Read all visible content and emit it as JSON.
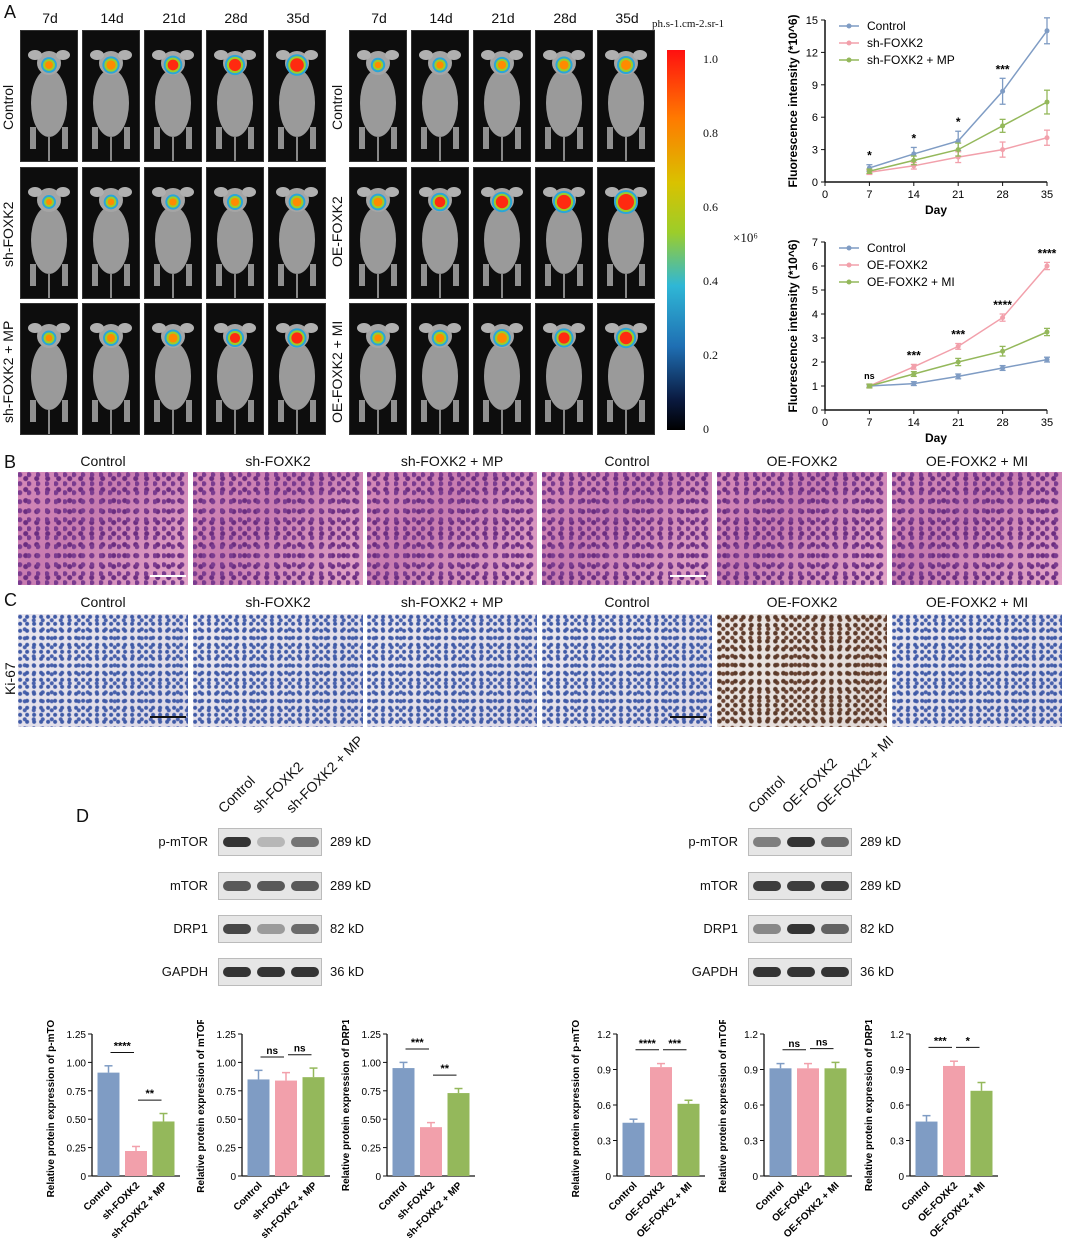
{
  "panel_labels": {
    "a": "A",
    "b": "B",
    "c": "C",
    "d": "D"
  },
  "days_cols": [
    "7d",
    "14d",
    "21d",
    "28d",
    "35d"
  ],
  "left_group_rows": [
    "Control",
    "sh-FOXK2",
    "sh-FOXK2 + MP"
  ],
  "right_group_rows": [
    "Control",
    "OE-FOXK2",
    "OE-FOXK2 + MI"
  ],
  "colorbar": {
    "unit": "ph.s-1.cm-2.sr-1",
    "scale_label": "×10⁶",
    "ticks": [
      "1.0",
      "0.8",
      "0.6",
      "0.4",
      "0.2",
      "0"
    ]
  },
  "histology": {
    "titles": [
      "Control",
      "sh-FOXK2",
      "sh-FOXK2 + MP",
      "Control",
      "OE-FOXK2",
      "OE-FOXK2 + MI"
    ],
    "ki67_label": "Ki-67"
  },
  "western": {
    "left_lanes": [
      "Control",
      "sh-FOXK2",
      "sh-FOXK2 + MP"
    ],
    "right_lanes": [
      "Control",
      "OE-FOXK2",
      "OE-FOXK2 + MI"
    ],
    "proteins": [
      "p-mTOR",
      "mTOR",
      "DRP1",
      "GAPDH"
    ],
    "kd": [
      "289 kD",
      "289 kD",
      "82 kD",
      "36 kD"
    ]
  },
  "colors": {
    "control": "#7f9cc4",
    "sh": "#f2a0ab",
    "mp": "#94b85b"
  },
  "chart_data": [
    {
      "type": "line",
      "xlabel": "Day",
      "ylabel": "Fluorescence intensity (*10^6)",
      "x": [
        7,
        14,
        21,
        28,
        35
      ],
      "xticks": [
        0,
        7,
        14,
        21,
        28,
        35
      ],
      "yticks": [
        0,
        3,
        6,
        9,
        12,
        15
      ],
      "xlim": [
        0,
        35
      ],
      "ylim": [
        0,
        15
      ],
      "series": [
        {
          "name": "Control",
          "values": [
            1.3,
            2.6,
            3.8,
            8.4,
            14.0
          ],
          "err": [
            0.3,
            0.6,
            0.9,
            1.2,
            1.2
          ],
          "color": "#7f9cc4"
        },
        {
          "name": "sh-FOXK2",
          "values": [
            0.9,
            1.5,
            2.3,
            3.0,
            4.1
          ],
          "err": [
            0.2,
            0.3,
            0.5,
            0.7,
            0.7
          ],
          "color": "#f2a0ab"
        },
        {
          "name": "sh-FOXK2 + MP",
          "values": [
            1.0,
            2.0,
            3.0,
            5.2,
            7.4
          ],
          "err": [
            0.2,
            0.4,
            0.6,
            0.6,
            1.1
          ],
          "color": "#94b85b"
        }
      ],
      "annotations": [
        "*",
        "*",
        "*",
        "***",
        "****"
      ]
    },
    {
      "type": "line",
      "xlabel": "Day",
      "ylabel": "Fluorescence intensity (*10^6)",
      "x": [
        7,
        14,
        21,
        28,
        35
      ],
      "xticks": [
        0,
        7,
        14,
        21,
        28,
        35
      ],
      "yticks": [
        0,
        1,
        2,
        3,
        4,
        5,
        6,
        7
      ],
      "xlim": [
        0,
        35
      ],
      "ylim": [
        0,
        7
      ],
      "series": [
        {
          "name": "Control",
          "values": [
            1.0,
            1.1,
            1.4,
            1.75,
            2.1
          ],
          "err": [
            0.05,
            0.08,
            0.1,
            0.1,
            0.1
          ],
          "color": "#7f9cc4"
        },
        {
          "name": "OE-FOXK2",
          "values": [
            1.0,
            1.8,
            2.65,
            3.85,
            6.0
          ],
          "err": [
            0.08,
            0.1,
            0.12,
            0.15,
            0.15
          ],
          "color": "#f2a0ab"
        },
        {
          "name": "OE-FOXK2 + MI",
          "values": [
            1.0,
            1.5,
            2.0,
            2.45,
            3.25
          ],
          "err": [
            0.08,
            0.1,
            0.15,
            0.2,
            0.15
          ],
          "color": "#94b85b"
        }
      ],
      "annotations": [
        "ns",
        "***",
        "***",
        "****",
        "****"
      ]
    },
    {
      "type": "bar",
      "ylabel": "Relative protein expression of p-mTOR",
      "categories": [
        "Control",
        "sh-FOXK2",
        "sh-FOXK2 + MP"
      ],
      "values": [
        0.91,
        0.22,
        0.48
      ],
      "err": [
        0.06,
        0.04,
        0.07
      ],
      "ylim": [
        0,
        1.25
      ],
      "yticks": [
        "0",
        "0.25",
        "0.50",
        "0.75",
        "1.00",
        "1.25"
      ],
      "sig": [
        {
          "from": 0,
          "to": 1,
          "label": "****"
        },
        {
          "from": 1,
          "to": 2,
          "label": "**"
        }
      ]
    },
    {
      "type": "bar",
      "ylabel": "Relative protein expression of mTOR",
      "categories": [
        "Control",
        "sh-FOXK2",
        "sh-FOXK2 + MP"
      ],
      "values": [
        0.85,
        0.84,
        0.87
      ],
      "err": [
        0.08,
        0.07,
        0.08
      ],
      "ylim": [
        0,
        1.25
      ],
      "yticks": [
        "0",
        "0.25",
        "0.50",
        "0.75",
        "1.00",
        "1.25"
      ],
      "sig": [
        {
          "from": 0,
          "to": 1,
          "label": "ns"
        },
        {
          "from": 1,
          "to": 2,
          "label": "ns"
        }
      ]
    },
    {
      "type": "bar",
      "ylabel": "Relative protein expression of DRP1",
      "categories": [
        "Control",
        "sh-FOXK2",
        "sh-FOXK2 + MP"
      ],
      "values": [
        0.95,
        0.43,
        0.73
      ],
      "err": [
        0.05,
        0.04,
        0.04
      ],
      "ylim": [
        0,
        1.25
      ],
      "yticks": [
        "0",
        "0.25",
        "0.50",
        "0.75",
        "1.00",
        "1.25"
      ],
      "sig": [
        {
          "from": 0,
          "to": 1,
          "label": "***"
        },
        {
          "from": 1,
          "to": 2,
          "label": "**"
        }
      ]
    },
    {
      "type": "bar",
      "ylabel": "Relative protein expression of p-mTOR",
      "categories": [
        "Control",
        "OE-FOXK2",
        "OE-FOXK2 + MI"
      ],
      "values": [
        0.45,
        0.92,
        0.61
      ],
      "err": [
        0.03,
        0.03,
        0.03
      ],
      "ylim": [
        0,
        1.2
      ],
      "yticks": [
        "0",
        "0.3",
        "0.6",
        "0.9",
        "1.2"
      ],
      "sig": [
        {
          "from": 0,
          "to": 1,
          "label": "****"
        },
        {
          "from": 1,
          "to": 2,
          "label": "***"
        }
      ]
    },
    {
      "type": "bar",
      "ylabel": "Relative protein expression of mTOR",
      "categories": [
        "Control",
        "OE-FOXK2",
        "OE-FOXK2 + MI"
      ],
      "values": [
        0.91,
        0.91,
        0.91
      ],
      "err": [
        0.04,
        0.04,
        0.05
      ],
      "ylim": [
        0,
        1.2
      ],
      "yticks": [
        "0",
        "0.3",
        "0.6",
        "0.9",
        "1.2"
      ],
      "sig": [
        {
          "from": 0,
          "to": 1,
          "label": "ns"
        },
        {
          "from": 1,
          "to": 2,
          "label": "ns"
        }
      ]
    },
    {
      "type": "bar",
      "ylabel": "Relative protein expression of DRP1",
      "categories": [
        "Control",
        "OE-FOXK2",
        "OE-FOXK2 + MI"
      ],
      "values": [
        0.46,
        0.93,
        0.72
      ],
      "err": [
        0.05,
        0.04,
        0.07
      ],
      "ylim": [
        0,
        1.2
      ],
      "yticks": [
        "0",
        "0.3",
        "0.6",
        "0.9",
        "1.2"
      ],
      "sig": [
        {
          "from": 0,
          "to": 1,
          "label": "***"
        },
        {
          "from": 1,
          "to": 2,
          "label": "*"
        }
      ]
    }
  ]
}
